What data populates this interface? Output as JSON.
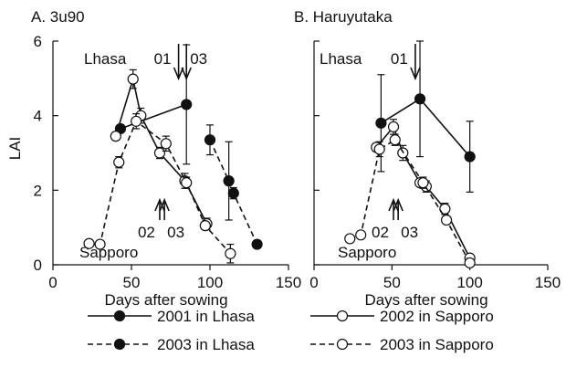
{
  "chart_data": [
    {
      "type": "line",
      "title": "A. 3u90",
      "xlabel": "Days after sowing",
      "ylabel": "LAI",
      "xlim": [
        0,
        150
      ],
      "ylim": [
        0,
        6
      ],
      "xticks": [
        0,
        50,
        100,
        150
      ],
      "yticks": [
        0,
        2,
        4,
        6
      ],
      "tick_labels_y": [
        "0",
        "2",
        "4",
        "6"
      ],
      "tick_labels_x": [
        "0",
        "50",
        "100",
        "150"
      ],
      "lhasa_label": "Lhasa",
      "lhasa_arrows": [
        {
          "label": "01",
          "x": 80
        },
        {
          "label": "03",
          "x": 85
        }
      ],
      "sapporo_label": "Sapporo",
      "sapporo_arrows": [
        {
          "label": "02",
          "x": 68
        },
        {
          "label": "03",
          "x": 71
        }
      ],
      "series": [
        {
          "name": "2001 in Lhasa",
          "marker": "filled",
          "dash": false,
          "points": [
            [
              43,
              3.65,
              0.1
            ],
            [
              85,
              4.3,
              1.6
            ]
          ]
        },
        {
          "name": "2003 in Lhasa",
          "marker": "filled",
          "dash": true,
          "points": [
            [
              100,
              3.35,
              0.4
            ],
            [
              112,
              2.25,
              1.05
            ],
            [
              115,
              1.92,
              0.15
            ],
            [
              130,
              0.55,
              0.1
            ]
          ]
        },
        {
          "name": "2002 in Sapporo",
          "marker": "open",
          "dash": false,
          "points": [
            [
              40,
              3.45,
              0.1
            ],
            [
              51,
              4.98,
              0.25
            ],
            [
              56,
              4.0,
              0.2
            ],
            [
              68,
              3.0,
              0.15
            ],
            [
              84,
              2.25,
              0.2
            ],
            [
              98,
              1.1,
              0.15
            ]
          ]
        },
        {
          "name": "2003 in Sapporo",
          "marker": "open",
          "dash": true,
          "points": [
            [
              23,
              0.57,
              0.05
            ],
            [
              30,
              0.55,
              0.05
            ],
            [
              42,
              2.75,
              0.15
            ],
            [
              53,
              3.85,
              0.2
            ],
            [
              72,
              3.25,
              0.2
            ],
            [
              85,
              2.2,
              0.15
            ],
            [
              97,
              1.05,
              0.1
            ],
            [
              113,
              0.3,
              0.25
            ]
          ]
        }
      ]
    },
    {
      "type": "line",
      "title": "B. Haruyutaka",
      "xlabel": "Days after sowing",
      "ylabel": "",
      "xlim": [
        0,
        150
      ],
      "ylim": [
        0,
        6
      ],
      "xticks": [
        0,
        50,
        100,
        150
      ],
      "yticks": [
        0,
        2,
        4,
        6
      ],
      "tick_labels_x": [
        "0",
        "50",
        "100",
        "150"
      ],
      "lhasa_label": "Lhasa",
      "lhasa_arrows": [
        {
          "label": "01",
          "x": 65
        }
      ],
      "sapporo_label": "Sapporo",
      "sapporo_arrows": [
        {
          "label": "02",
          "x": 51
        },
        {
          "label": "03",
          "x": 54
        }
      ],
      "series": [
        {
          "name": "2001 in Lhasa",
          "marker": "filled",
          "dash": false,
          "points": [
            [
              43,
              3.8,
              1.3
            ],
            [
              68,
              4.45,
              1.55
            ],
            [
              100,
              2.9,
              0.95
            ]
          ]
        },
        {
          "name": "2002 in Sapporo",
          "marker": "open",
          "dash": false,
          "points": [
            [
              40,
              3.15,
              0.1
            ],
            [
              51,
              3.7,
              0.2
            ],
            [
              57,
              3.0,
              0.2
            ],
            [
              68,
              2.2,
              0.1
            ],
            [
              72,
              2.1,
              0.15
            ],
            [
              84,
              1.5,
              0.15
            ],
            [
              100,
              0.18,
              0.05
            ]
          ]
        },
        {
          "name": "2003 in Sapporo",
          "marker": "open",
          "dash": true,
          "points": [
            [
              23,
              0.7,
              0.05
            ],
            [
              30,
              0.8,
              0.05
            ],
            [
              42,
              3.1,
              0.2
            ],
            [
              52,
              3.35,
              0.15
            ],
            [
              70,
              2.2,
              0.15
            ],
            [
              85,
              1.2,
              0.1
            ],
            [
              100,
              0.05,
              0.05
            ]
          ]
        }
      ]
    }
  ],
  "legend": [
    {
      "label": "2001 in Lhasa",
      "marker": "filled",
      "dash": false
    },
    {
      "label": "2002 in Sapporo",
      "marker": "open",
      "dash": false
    },
    {
      "label": "2003 in Lhasa",
      "marker": "filled",
      "dash": true
    },
    {
      "label": "2003 in Sapporo",
      "marker": "open",
      "dash": true
    }
  ]
}
